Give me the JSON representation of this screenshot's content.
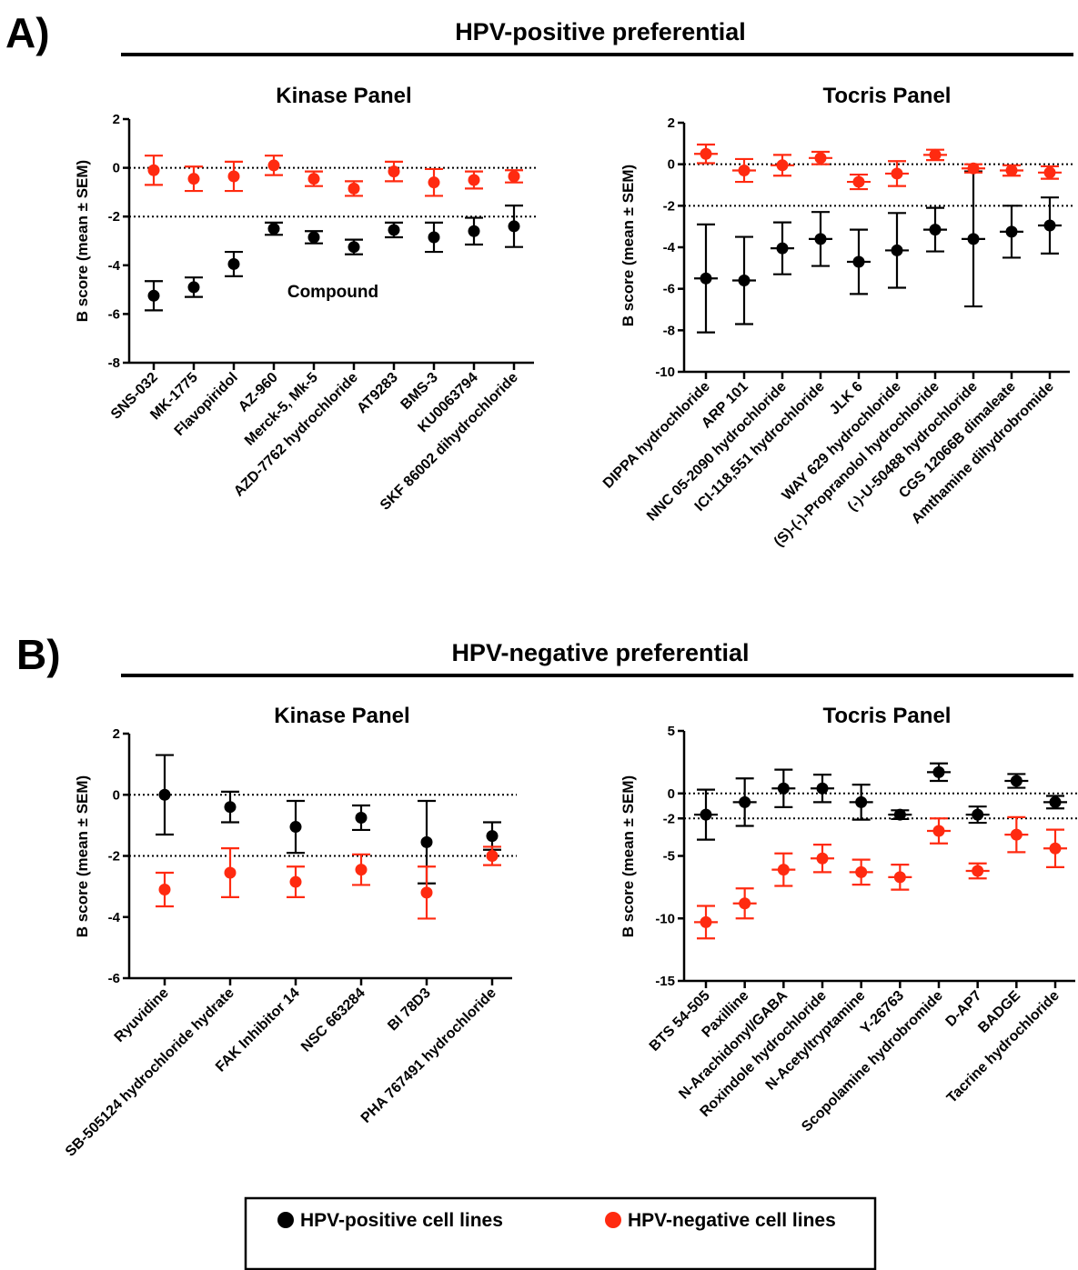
{
  "colors": {
    "hpv_positive": "#000000",
    "hpv_negative": "#ff2a10"
  },
  "sections": [
    {
      "label": "A)",
      "title": "HPV-positive preferential"
    },
    {
      "label": "B)",
      "title": "HPV-negative preferential"
    }
  ],
  "legend": {
    "items": [
      {
        "label": "HPV-positive cell lines",
        "color": "#000000"
      },
      {
        "label": "HPV-negative cell lines",
        "color": "#ff2a10"
      }
    ]
  },
  "chart_data": [
    {
      "type": "scatter",
      "title": "Kinase Panel",
      "ylabel": "B score (mean ± SEM)",
      "ylim": [
        -8,
        2
      ],
      "yticks": [
        2,
        0,
        -2,
        -4,
        -6,
        -8
      ],
      "reference_lines": [
        0,
        -2
      ],
      "annotation": "Compound",
      "categories": [
        "SNS-032",
        "MK-1775",
        "Flavopiridol",
        "AZ-960",
        "Merck-5, Mk-5",
        "AZD-7762 hydrochloride",
        "AT9283",
        "BMS-3",
        "KU0063794",
        "SKF 86002 dihydrochloride"
      ],
      "series": [
        {
          "name": "HPV-positive cell lines",
          "color": "#000000",
          "values": [
            -5.25,
            -4.9,
            -3.95,
            -2.5,
            -2.85,
            -3.25,
            -2.55,
            -2.85,
            -2.6,
            -2.4
          ],
          "errors": [
            0.6,
            0.4,
            0.5,
            0.25,
            0.25,
            0.3,
            0.3,
            0.6,
            0.55,
            0.85
          ]
        },
        {
          "name": "HPV-negative cell lines",
          "color": "#ff2a10",
          "values": [
            -0.1,
            -0.45,
            -0.35,
            0.1,
            -0.45,
            -0.85,
            -0.15,
            -0.6,
            -0.5,
            -0.35
          ],
          "errors": [
            0.6,
            0.5,
            0.6,
            0.4,
            0.3,
            0.3,
            0.4,
            0.55,
            0.35,
            0.25
          ]
        }
      ]
    },
    {
      "type": "scatter",
      "title": "Tocris Panel",
      "ylabel": "B score (mean ± SEM)",
      "ylim": [
        -10,
        2
      ],
      "yticks": [
        2,
        0,
        -2,
        -4,
        -6,
        -8,
        -10
      ],
      "reference_lines": [
        0,
        -2
      ],
      "categories": [
        "DIPPA hydrochloride",
        "ARP 101",
        "NNC 05-2090 hydrochloride",
        "ICI-118,551 hydrochloride",
        "JLK 6",
        "WAY 629 hydrochloride",
        "(S)-(-)-Propranolol hydrochloride",
        "(-)-U-50488 hydrochloride",
        "CGS 12066B dimaleate",
        "Amthamine dihydrobromide"
      ],
      "series": [
        {
          "name": "HPV-positive cell lines",
          "color": "#000000",
          "values": [
            -5.5,
            -5.6,
            -4.05,
            -3.6,
            -4.7,
            -4.15,
            -3.15,
            -3.6,
            -3.25,
            -2.95
          ],
          "errors": [
            2.6,
            2.1,
            1.25,
            1.3,
            1.55,
            1.8,
            1.05,
            3.25,
            1.25,
            1.35
          ]
        },
        {
          "name": "HPV-negative cell lines",
          "color": "#ff2a10",
          "values": [
            0.5,
            -0.3,
            -0.05,
            0.3,
            -0.85,
            -0.45,
            0.45,
            -0.2,
            -0.3,
            -0.4
          ],
          "errors": [
            0.45,
            0.55,
            0.5,
            0.3,
            0.35,
            0.6,
            0.25,
            0.2,
            0.25,
            0.3
          ]
        }
      ]
    },
    {
      "type": "scatter",
      "title": "Kinase Panel",
      "ylabel": "B score (mean ± SEM)",
      "ylim": [
        -6,
        2
      ],
      "yticks": [
        2,
        0,
        -2,
        -4,
        -6
      ],
      "reference_lines": [
        0,
        -2
      ],
      "categories": [
        "Ryuvidine",
        "SB-505124 hydrochloride hydrate",
        "FAK Inhibitor 14",
        "NSC 663284",
        "BI 78D3",
        "PHA 767491 hydrochloride"
      ],
      "series": [
        {
          "name": "HPV-positive cell lines",
          "color": "#000000",
          "values": [
            0.0,
            -0.4,
            -1.05,
            -0.75,
            -1.55,
            -1.35
          ],
          "errors": [
            1.3,
            0.5,
            0.85,
            0.4,
            1.35,
            0.45
          ]
        },
        {
          "name": "HPV-negative cell lines",
          "color": "#ff2a10",
          "values": [
            -3.1,
            -2.55,
            -2.85,
            -2.45,
            -3.2,
            -2.0
          ],
          "errors": [
            0.55,
            0.8,
            0.5,
            0.5,
            0.85,
            0.3
          ]
        }
      ]
    },
    {
      "type": "scatter",
      "title": "Tocris Panel",
      "ylabel": "B score (mean ± SEM)",
      "ylim": [
        -15,
        5
      ],
      "yticks": [
        5,
        0,
        -2,
        -5,
        -10,
        -15
      ],
      "reference_lines": [
        0,
        -2
      ],
      "categories": [
        "BTS 54-505",
        "Paxilline",
        "N-Arachidonyl/GABA",
        "Roxindole hydrochloride",
        "N-Acetyltryptamine",
        "Y-26763",
        "Scopolamine hydrobromide",
        "D-AP7",
        "BADGE",
        "Tacrine hydrochloride"
      ],
      "series": [
        {
          "name": "HPV-positive cell lines",
          "color": "#000000",
          "values": [
            -1.7,
            -0.7,
            0.4,
            0.4,
            -0.7,
            -1.7,
            1.7,
            -1.7,
            1.0,
            -0.7
          ],
          "errors": [
            2.0,
            1.9,
            1.5,
            1.1,
            1.4,
            0.35,
            0.7,
            0.65,
            0.55,
            0.5
          ]
        },
        {
          "name": "HPV-negative cell lines",
          "color": "#ff2a10",
          "values": [
            -10.3,
            -8.8,
            -6.1,
            -5.2,
            -6.3,
            -6.7,
            -3.0,
            -6.2,
            -3.3,
            -4.4
          ],
          "errors": [
            1.3,
            1.2,
            1.3,
            1.1,
            1.0,
            1.0,
            1.0,
            0.6,
            1.4,
            1.5
          ]
        }
      ]
    }
  ]
}
